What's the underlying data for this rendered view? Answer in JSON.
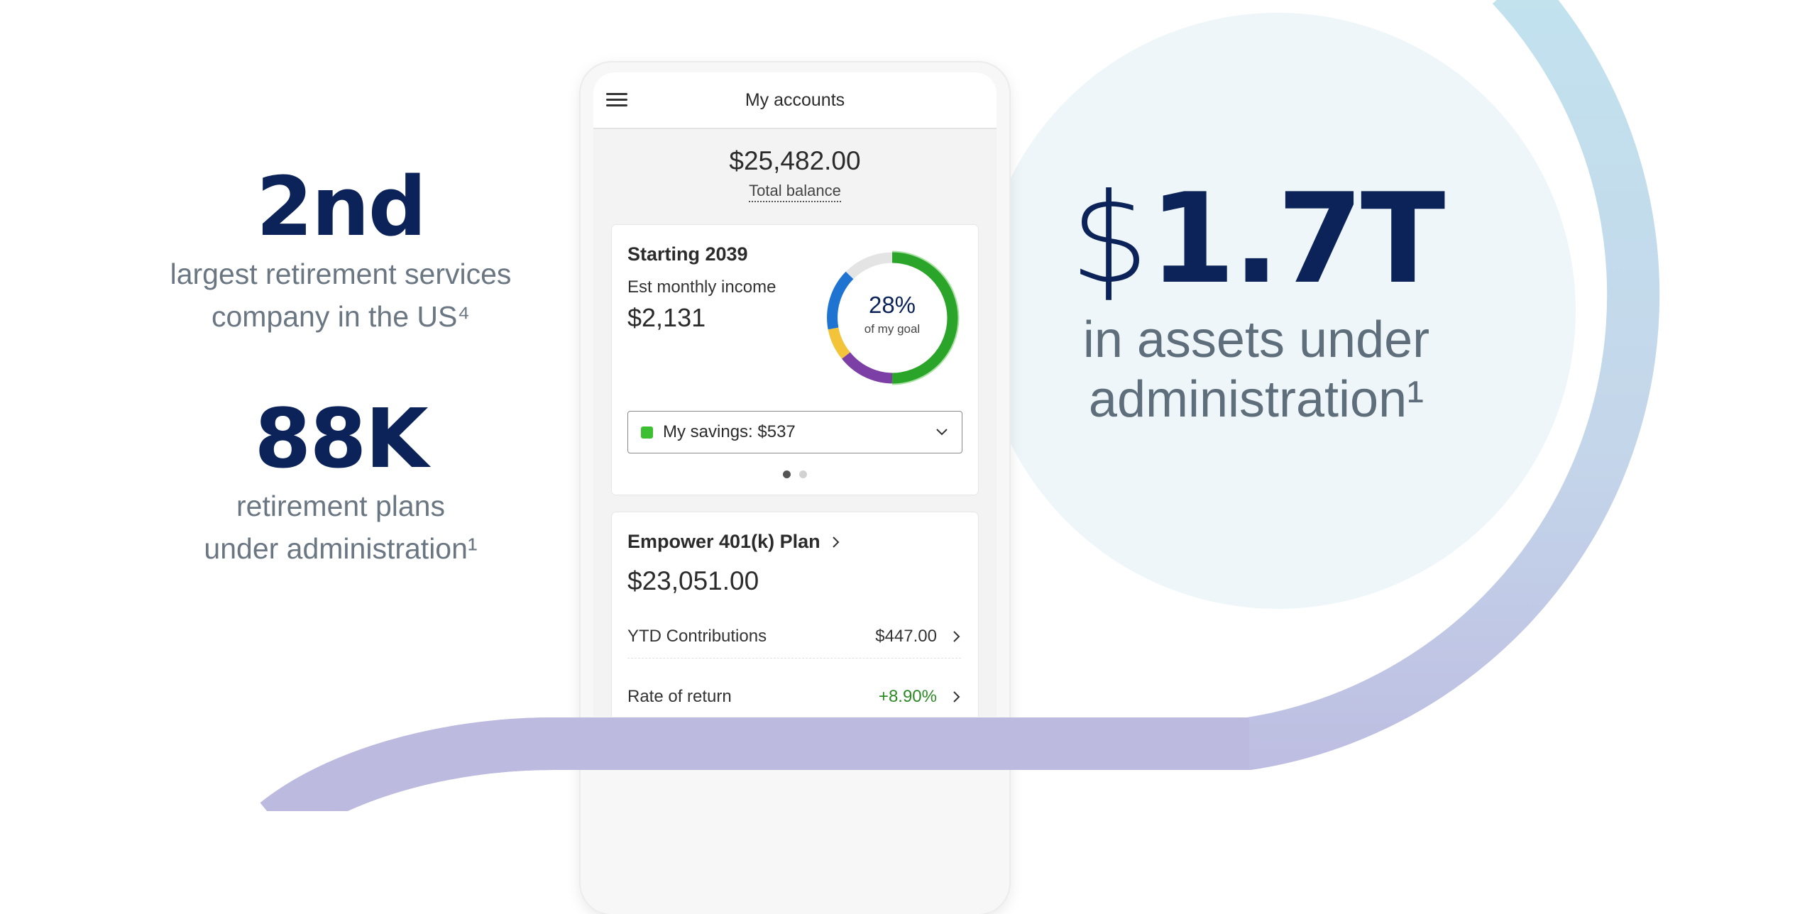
{
  "left_stats": [
    {
      "value": "2nd",
      "line1": "largest retirement services",
      "line2": "company in the US⁴"
    },
    {
      "value": "88K",
      "line1": "retirement plans",
      "line2": "under administration¹"
    }
  ],
  "big_stat": {
    "currency": "$",
    "amount": "1.7T",
    "line1": "in assets under",
    "line2": "administration¹"
  },
  "app": {
    "header_title": "My accounts",
    "total_balance": "$25,482.00",
    "total_balance_label": "Total balance",
    "income_card": {
      "title": "Starting 2039",
      "label": "Est monthly income",
      "value": "$2,131",
      "goal_percent": "28%",
      "goal_label": "of my goal",
      "goal_fraction": 0.28,
      "select_text": "My savings: $537",
      "page_count": 2,
      "active_page": 1
    },
    "plan_card": {
      "title": "Empower 401(k) Plan",
      "value": "$23,051.00",
      "rows": [
        {
          "label": "YTD Contributions",
          "value": "$447.00"
        },
        {
          "label": "Rate of return",
          "value": "+8.90%"
        }
      ]
    }
  },
  "colors": {
    "navy": "#0b2358",
    "savings_green": "#3cbf30",
    "positive_green": "#2c8a24",
    "circle_fill": "#eef6fa",
    "ring_blue": "#c2e0ec",
    "ribbon_purple": "#bdbae0"
  }
}
